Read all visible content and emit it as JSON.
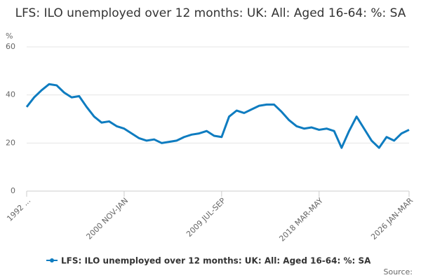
{
  "chart_data": {
    "type": "line",
    "title": "LFS: ILO unemployed over 12 months: UK: All: Aged 16-64: %: SA",
    "y_label": "%",
    "source": "Source:",
    "categories": [
      "1992 ...",
      null,
      null,
      null,
      null,
      null,
      null,
      null,
      null,
      null,
      null,
      null,
      null,
      "2000 NOV-JAN",
      null,
      null,
      null,
      null,
      null,
      null,
      null,
      null,
      null,
      null,
      null,
      null,
      "2009 JUL-SEP",
      null,
      null,
      null,
      null,
      null,
      null,
      null,
      null,
      null,
      null,
      null,
      null,
      "2018 MAR-MAY",
      null,
      null,
      null,
      null,
      null,
      null,
      null,
      null,
      null,
      null,
      null,
      "2026 JAN-MAR"
    ],
    "series": [
      {
        "name": "LFS: ILO unemployed over 12 months: UK: All: Aged 16-64: %: SA",
        "color": "#0e7cc0",
        "values": [
          35,
          39,
          42,
          44.5,
          44,
          41,
          39,
          39.5,
          35,
          31,
          28.5,
          29,
          27,
          26,
          24,
          22,
          21,
          21.5,
          20,
          20.5,
          21,
          22.5,
          23.5,
          24,
          25,
          23,
          22.5,
          31,
          33.5,
          32.5,
          34,
          35.5,
          36,
          36,
          33,
          29.5,
          27,
          26,
          26.5,
          25.5,
          26,
          25,
          18,
          25,
          31,
          26,
          21,
          18,
          22.5,
          21,
          24,
          25.5
        ]
      }
    ],
    "ylim": [
      0,
      60
    ],
    "yticks": [
      0,
      20,
      40,
      60
    ],
    "grid": true
  }
}
